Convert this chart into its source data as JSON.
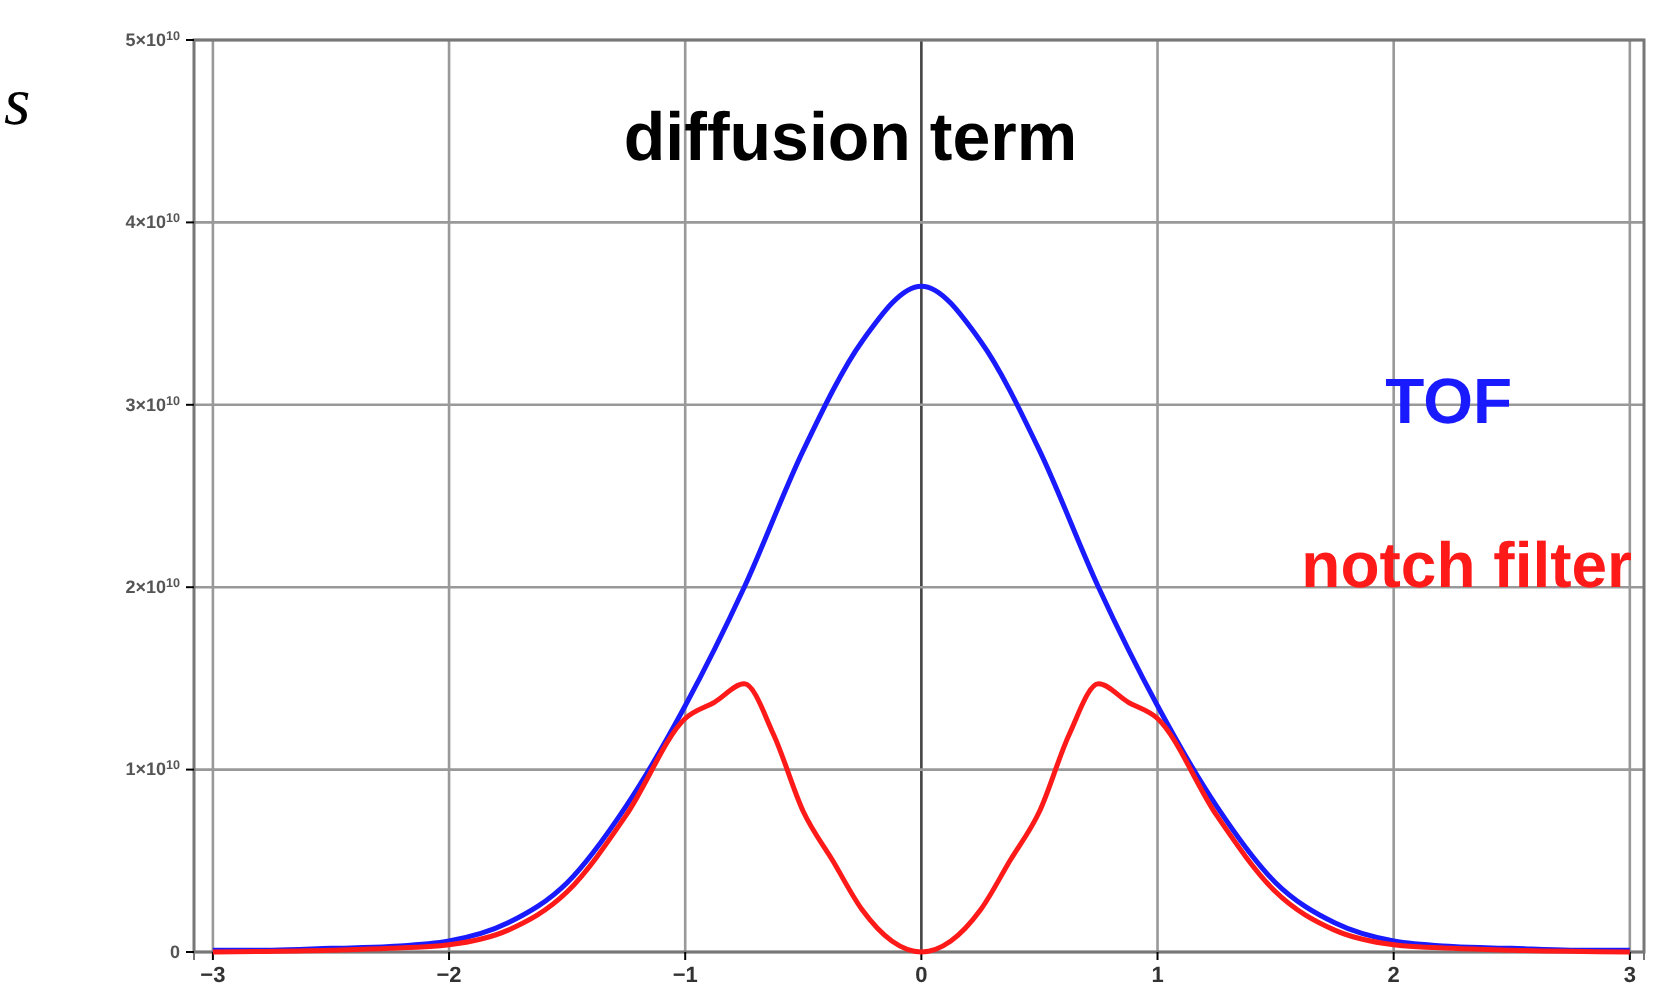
{
  "chart_data": {
    "type": "line",
    "title": "diffusion term",
    "annotations": [
      "s"
    ],
    "xlim": [
      -3.08,
      3.06
    ],
    "ylim": [
      0,
      50000000000
    ],
    "xticks": [
      -3,
      -2,
      -1,
      0,
      1,
      2,
      3
    ],
    "yticks": [
      0,
      {
        "value": 10000000000,
        "label": "1×10$^{10}$"
      },
      {
        "value": 20000000000,
        "label": "2×10$^{10}$"
      },
      {
        "value": 30000000000,
        "label": "3×10$^{10}$"
      },
      {
        "value": 40000000000,
        "label": "4×10$^{10}$"
      },
      {
        "value": 50000000000,
        "label": "5×10$^{10}$"
      }
    ],
    "grid": true,
    "marker": "none",
    "line_style": "solid",
    "series": [
      {
        "name": "TOF",
        "color": "#1a1aff",
        "x": [
          -3,
          -2.75,
          -2.5,
          -2.25,
          -2,
          -1.75,
          -1.5,
          -1.25,
          -1,
          -0.75,
          -0.5,
          -0.25,
          0,
          0.25,
          0.5,
          0.75,
          1,
          1.25,
          1.5,
          1.75,
          2,
          2.25,
          2.5,
          2.75,
          3
        ],
        "values": [
          100000000,
          100000000,
          200000000,
          300000000,
          600000000,
          1600000000,
          3800000000,
          8000000000,
          13500000000,
          20000000000,
          27500000000,
          33500000000,
          36500000000,
          33500000000,
          27500000000,
          20000000000,
          13500000000,
          8000000000,
          3800000000,
          1600000000,
          600000000,
          300000000,
          200000000,
          100000000,
          100000000
        ]
      },
      {
        "name": "notch filter",
        "color": "#ff1a1a",
        "x": [
          -3,
          -2.5,
          -2.25,
          -2,
          -1.75,
          -1.5,
          -1.25,
          -1,
          -0.875,
          -0.75,
          -0.625,
          -0.5,
          -0.375,
          -0.25,
          -0.125,
          0,
          0.125,
          0.25,
          0.375,
          0.5,
          0.625,
          0.75,
          0.875,
          1,
          1.25,
          1.5,
          1.75,
          2,
          2.25,
          2.5,
          3
        ],
        "values": [
          0,
          100000000,
          200000000,
          400000000,
          1200000000,
          3300000000,
          7500000000,
          12800000000,
          13700000000,
          14700000000,
          11900000000,
          7700000000,
          5000000000,
          2300000000,
          600000000,
          0,
          600000000,
          2300000000,
          5000000000,
          7700000000,
          11900000000,
          14700000000,
          13700000000,
          12800000000,
          7500000000,
          3300000000,
          1200000000,
          400000000,
          200000000,
          100000000,
          0
        ]
      }
    ]
  }
}
